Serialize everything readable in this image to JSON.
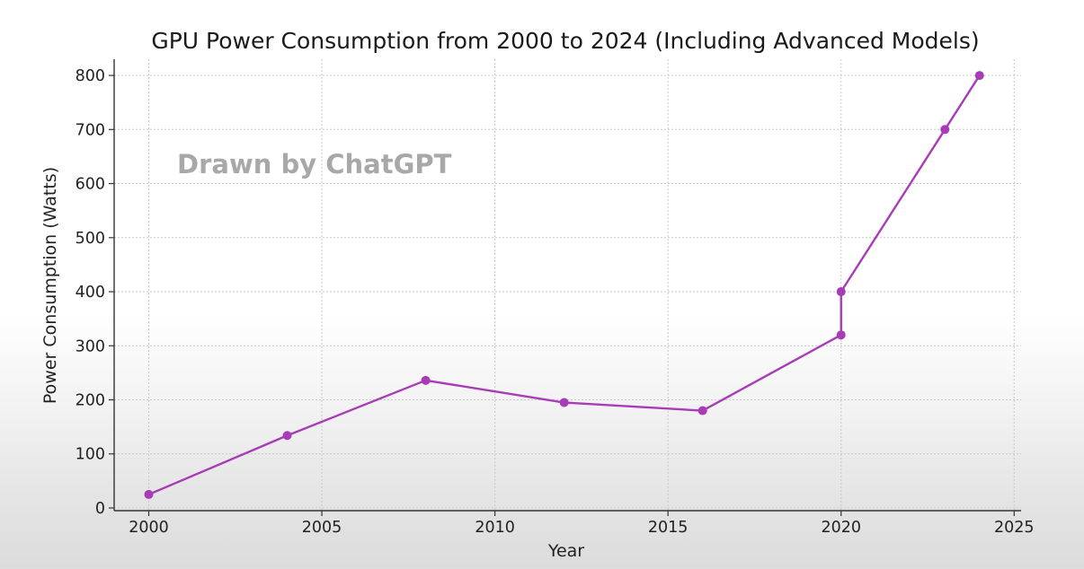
{
  "chart_data": {
    "type": "line",
    "title": "GPU Power Consumption from 2000 to 2024 (Including Advanced Models)",
    "xlabel": "Year",
    "ylabel": "Power Consumption (Watts)",
    "xlim": [
      1999,
      2025.2
    ],
    "ylim": [
      -5,
      830
    ],
    "x_ticks": [
      2000,
      2005,
      2010,
      2015,
      2020,
      2025
    ],
    "y_ticks": [
      0,
      100,
      200,
      300,
      400,
      500,
      600,
      700,
      800
    ],
    "grid": true,
    "series": [
      {
        "x": [
          2000,
          2004,
          2008,
          2012,
          2016,
          2020,
          2020,
          2023,
          2024
        ],
        "y": [
          25,
          134,
          236,
          195,
          180,
          320,
          400,
          700,
          800
        ],
        "color": "#a83bb6"
      }
    ]
  },
  "watermark": "Drawn by ChatGPT"
}
